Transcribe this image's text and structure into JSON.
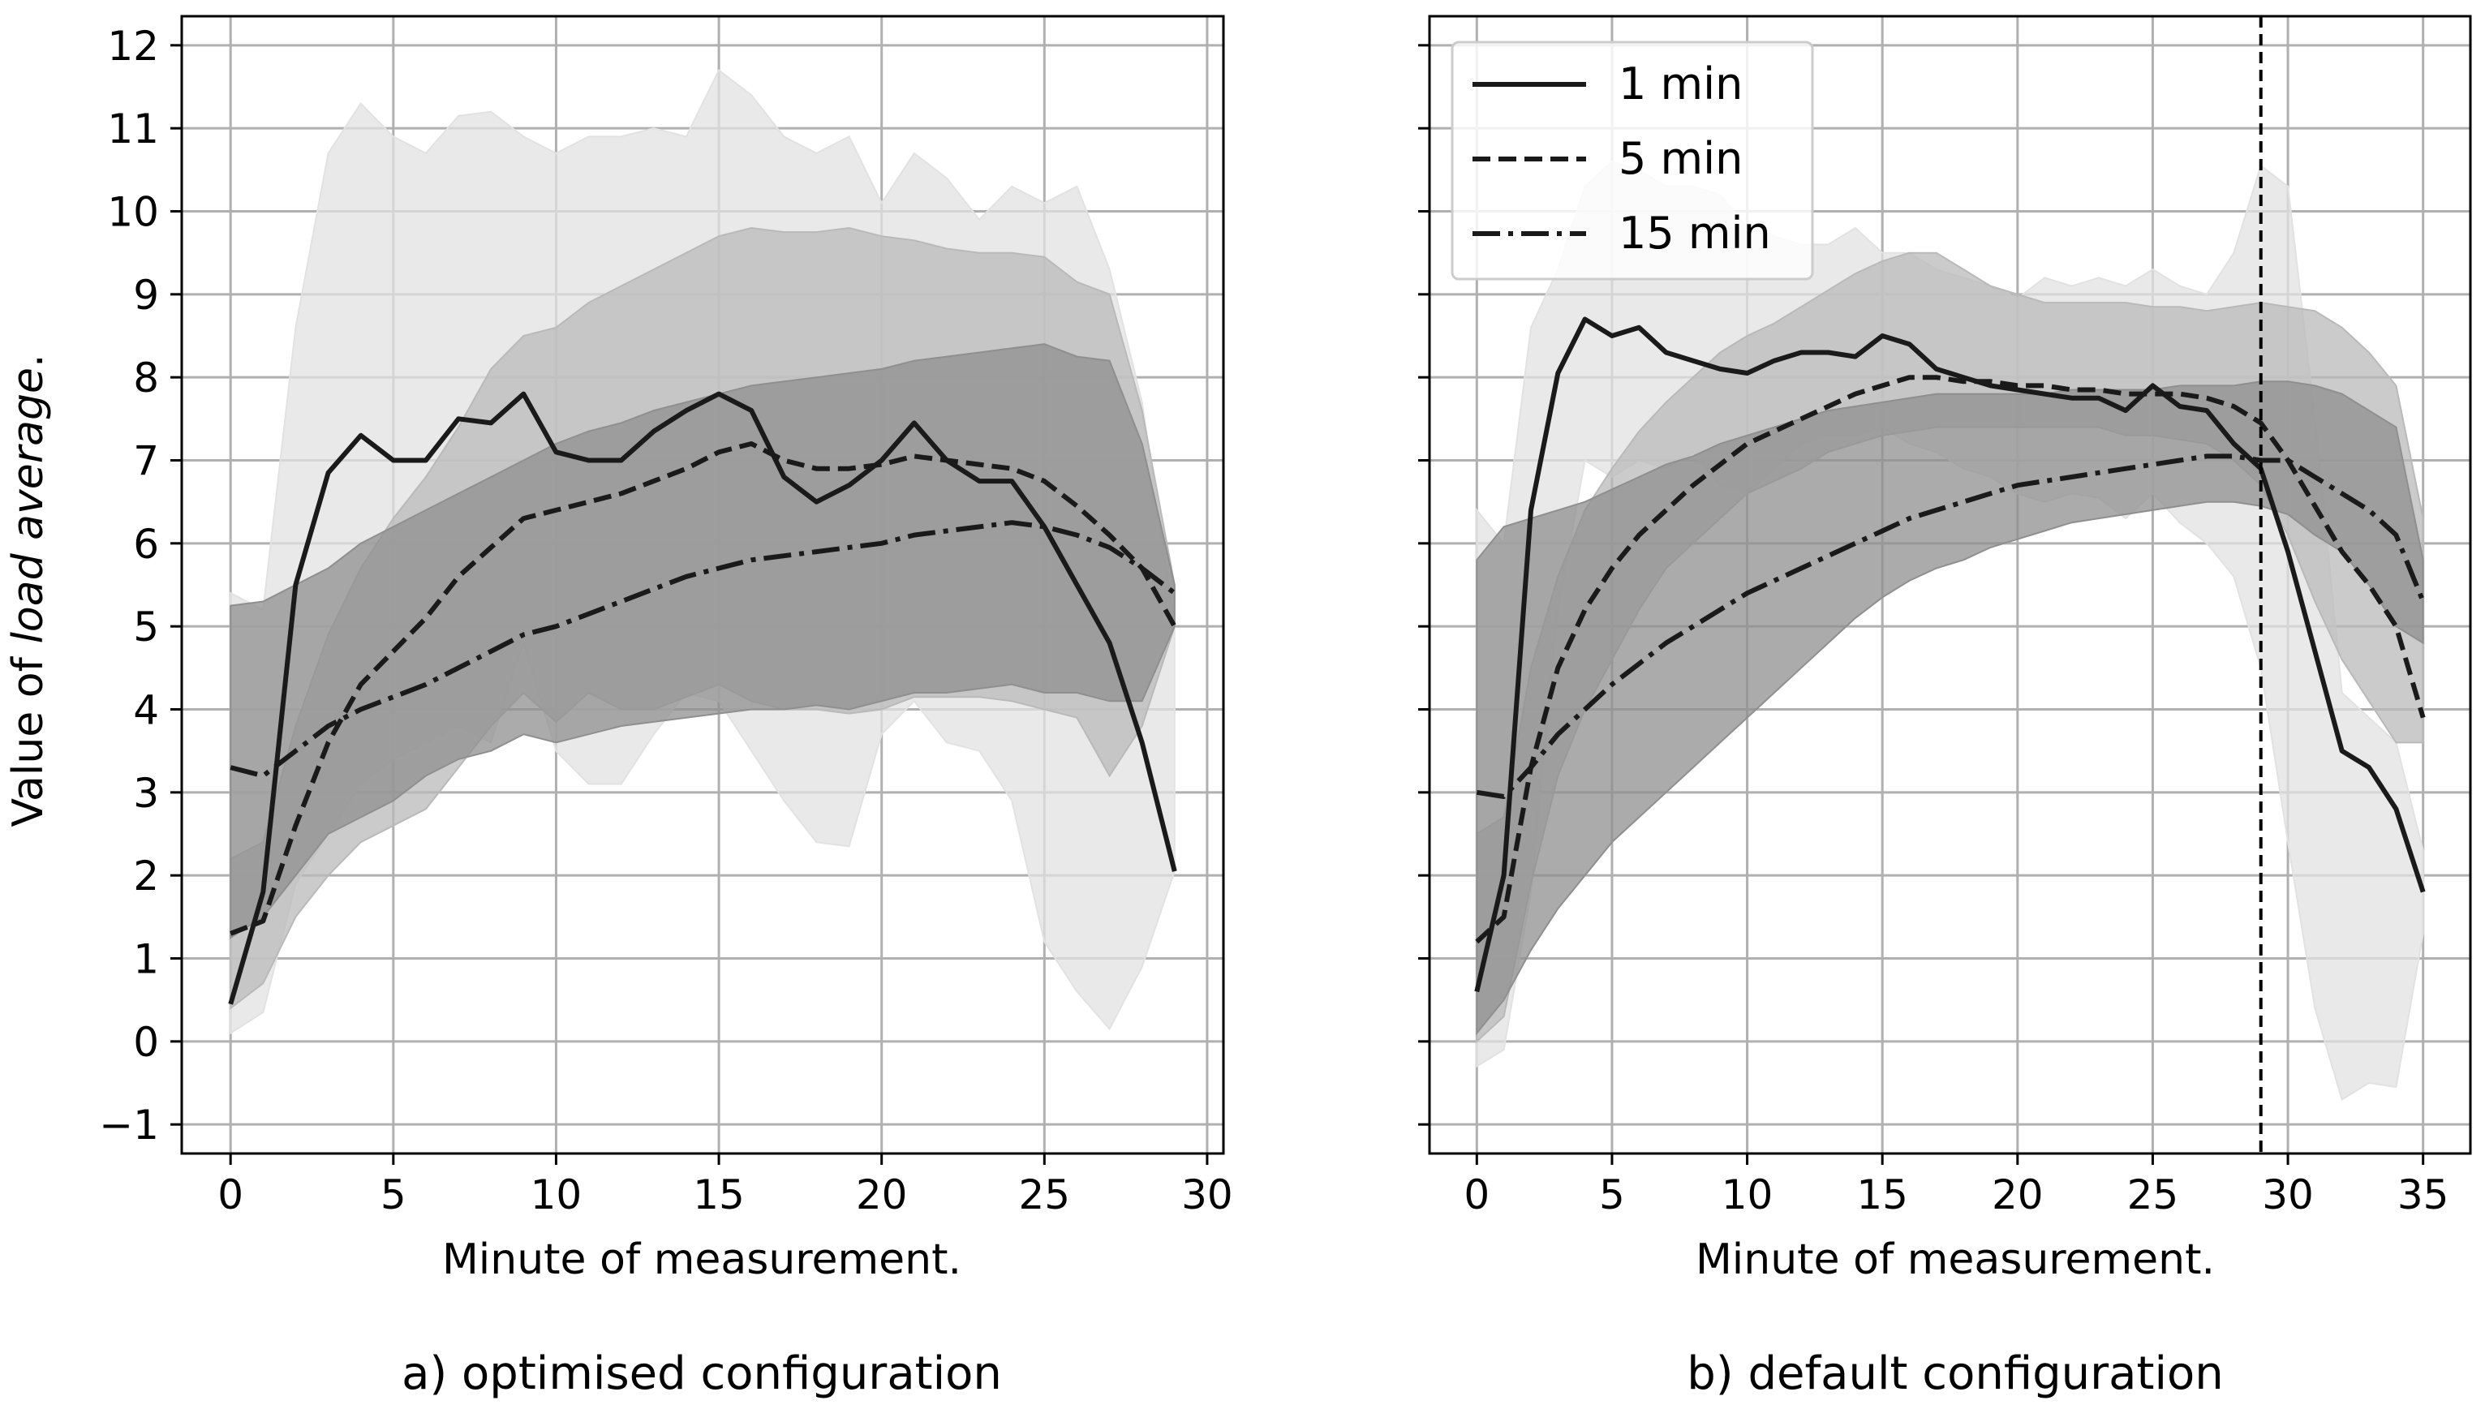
{
  "colors": {
    "band_light": "#e2e2e2",
    "band_mid": "#b9b9b9",
    "band_dark": "#8f8f8f",
    "line": "#1a1a1a",
    "grid": "#b0b0b0"
  },
  "ylabel_prefix": "Value of ",
  "ylabel_italic": "load average",
  "ylabel_suffix": ".",
  "legend": {
    "entries": [
      {
        "label": "1 min",
        "style": "solid"
      },
      {
        "label": "5 min",
        "style": "dashed"
      },
      {
        "label": "15 min",
        "style": "dashdot"
      }
    ]
  },
  "chart_data": [
    {
      "type": "line",
      "panel": "a",
      "caption": "a) optimised configuration",
      "xlabel": "Minute of measurement.",
      "ylabel": "Value of load average.",
      "xlim": [
        -1.5,
        30.5
      ],
      "ylim": [
        -1.35,
        12.35
      ],
      "xticks": [
        0,
        5,
        10,
        15,
        20,
        25,
        30
      ],
      "yticks": [
        -1,
        0,
        1,
        2,
        3,
        4,
        5,
        6,
        7,
        8,
        9,
        10,
        11,
        12
      ],
      "grid": true,
      "vline": null,
      "series": [
        {
          "name": "1 min",
          "style": "solid",
          "x": [
            0,
            1,
            2,
            3,
            4,
            5,
            6,
            7,
            8,
            9,
            10,
            11,
            12,
            13,
            14,
            15,
            16,
            17,
            18,
            19,
            20,
            21,
            22,
            23,
            24,
            25,
            26,
            27,
            28,
            29
          ],
          "values": [
            0.45,
            1.8,
            5.5,
            6.85,
            7.3,
            7.0,
            7.0,
            7.5,
            7.45,
            7.8,
            7.1,
            7.0,
            7.0,
            7.35,
            7.6,
            7.8,
            7.6,
            6.8,
            6.5,
            6.7,
            7.0,
            7.45,
            7.0,
            6.75,
            6.75,
            6.2,
            5.5,
            4.8,
            3.6,
            2.05
          ],
          "band_upper": [
            5.4,
            5.2,
            8.6,
            10.7,
            11.3,
            10.9,
            10.7,
            11.15,
            11.2,
            10.9,
            10.7,
            10.9,
            10.9,
            11.0,
            10.9,
            11.7,
            11.4,
            10.9,
            10.7,
            10.9,
            10.1,
            10.7,
            10.4,
            9.9,
            10.3,
            10.1,
            10.3,
            9.3,
            7.7,
            5.0
          ],
          "band_lower": [
            0.1,
            0.35,
            1.9,
            2.5,
            3.1,
            3.4,
            3.6,
            3.8,
            3.6,
            4.8,
            3.5,
            3.1,
            3.1,
            3.7,
            4.2,
            4.1,
            3.5,
            2.9,
            2.4,
            2.35,
            3.7,
            4.1,
            3.6,
            3.5,
            2.9,
            1.2,
            0.6,
            0.15,
            0.9,
            2.05
          ]
        },
        {
          "name": "5 min",
          "style": "dashed",
          "x": [
            0,
            1,
            2,
            3,
            4,
            5,
            6,
            7,
            8,
            9,
            10,
            11,
            12,
            13,
            14,
            15,
            16,
            17,
            18,
            19,
            20,
            21,
            22,
            23,
            24,
            25,
            26,
            27,
            28,
            29
          ],
          "values": [
            1.3,
            1.45,
            2.6,
            3.6,
            4.3,
            4.7,
            5.1,
            5.6,
            5.95,
            6.3,
            6.4,
            6.5,
            6.6,
            6.75,
            6.9,
            7.1,
            7.2,
            7.0,
            6.9,
            6.9,
            6.95,
            7.05,
            7.0,
            6.95,
            6.9,
            6.75,
            6.45,
            6.1,
            5.7,
            5.0
          ],
          "band_upper": [
            2.2,
            2.4,
            3.8,
            4.9,
            5.7,
            6.3,
            6.8,
            7.4,
            8.1,
            8.5,
            8.6,
            8.9,
            9.1,
            9.3,
            9.5,
            9.7,
            9.8,
            9.75,
            9.75,
            9.8,
            9.7,
            9.65,
            9.55,
            9.5,
            9.5,
            9.45,
            9.15,
            9.0,
            7.6,
            5.5
          ],
          "band_lower": [
            0.4,
            0.7,
            1.5,
            2.0,
            2.4,
            2.6,
            2.8,
            3.3,
            3.8,
            4.2,
            3.85,
            4.2,
            4.0,
            4.0,
            4.15,
            4.3,
            4.1,
            4.0,
            4.0,
            3.95,
            4.0,
            4.15,
            4.15,
            4.15,
            4.1,
            4.0,
            3.9,
            3.2,
            3.8,
            5.0
          ]
        },
        {
          "name": "15 min",
          "style": "dashdot",
          "x": [
            0,
            1,
            2,
            3,
            4,
            5,
            6,
            7,
            8,
            9,
            10,
            11,
            12,
            13,
            14,
            15,
            16,
            17,
            18,
            19,
            20,
            21,
            22,
            23,
            24,
            25,
            26,
            27,
            28,
            29
          ],
          "values": [
            3.3,
            3.2,
            3.5,
            3.8,
            4.0,
            4.15,
            4.3,
            4.5,
            4.7,
            4.9,
            5.0,
            5.15,
            5.3,
            5.45,
            5.6,
            5.7,
            5.8,
            5.85,
            5.9,
            5.95,
            6.0,
            6.1,
            6.15,
            6.2,
            6.25,
            6.2,
            6.1,
            5.95,
            5.7,
            5.4
          ],
          "band_upper": [
            5.25,
            5.3,
            5.5,
            5.7,
            6.0,
            6.2,
            6.4,
            6.6,
            6.8,
            7.0,
            7.2,
            7.35,
            7.45,
            7.6,
            7.7,
            7.8,
            7.9,
            7.95,
            8.0,
            8.05,
            8.1,
            8.2,
            8.25,
            8.3,
            8.35,
            8.4,
            8.25,
            8.2,
            7.2,
            5.5
          ],
          "band_lower": [
            1.25,
            1.5,
            2.0,
            2.5,
            2.7,
            2.9,
            3.2,
            3.4,
            3.5,
            3.7,
            3.6,
            3.7,
            3.8,
            3.85,
            3.9,
            3.95,
            4.0,
            4.0,
            4.05,
            4.0,
            4.1,
            4.2,
            4.2,
            4.25,
            4.3,
            4.2,
            4.2,
            4.1,
            4.1,
            5.0
          ]
        }
      ]
    },
    {
      "type": "line",
      "panel": "b",
      "caption": "b) default configuration",
      "xlabel": "Minute of measurement.",
      "ylabel": "",
      "xlim": [
        -1.75,
        36.75
      ],
      "ylim": [
        -1.35,
        12.35
      ],
      "xticks": [
        0,
        5,
        10,
        15,
        20,
        25,
        30,
        35
      ],
      "yticks": [
        -1,
        0,
        1,
        2,
        3,
        4,
        5,
        6,
        7,
        8,
        9,
        10,
        11,
        12
      ],
      "grid": true,
      "vline": 29,
      "series": [
        {
          "name": "1 min",
          "style": "solid",
          "x": [
            0,
            1,
            2,
            3,
            4,
            5,
            6,
            7,
            8,
            9,
            10,
            11,
            12,
            13,
            14,
            15,
            16,
            17,
            18,
            19,
            20,
            21,
            22,
            23,
            24,
            25,
            26,
            27,
            28,
            29,
            30,
            31,
            32,
            33,
            34,
            35
          ],
          "values": [
            0.6,
            2.0,
            6.4,
            8.05,
            8.7,
            8.5,
            8.6,
            8.3,
            8.2,
            8.1,
            8.05,
            8.2,
            8.3,
            8.3,
            8.25,
            8.5,
            8.4,
            8.1,
            8.0,
            7.9,
            7.85,
            7.8,
            7.75,
            7.75,
            7.6,
            7.9,
            7.65,
            7.6,
            7.2,
            6.9,
            5.9,
            4.7,
            3.5,
            3.3,
            2.8,
            1.8
          ],
          "band_upper": [
            6.4,
            6.0,
            8.6,
            9.3,
            10.3,
            10.6,
            10.5,
            10.3,
            10.3,
            10.2,
            9.8,
            9.7,
            9.6,
            9.6,
            9.8,
            9.5,
            9.5,
            9.3,
            9.2,
            9.1,
            8.95,
            9.2,
            9.1,
            9.2,
            9.1,
            9.3,
            9.1,
            9.0,
            9.5,
            10.55,
            10.3,
            7.5,
            4.2,
            3.9,
            3.6,
            2.3
          ],
          "band_lower": [
            -0.3,
            -0.1,
            1.8,
            5.2,
            7.0,
            6.8,
            7.0,
            6.9,
            7.1,
            6.7,
            6.6,
            6.9,
            7.2,
            7.3,
            7.3,
            7.4,
            7.2,
            7.1,
            6.9,
            6.8,
            6.6,
            6.5,
            6.6,
            6.55,
            6.3,
            6.6,
            6.25,
            6.0,
            5.6,
            4.5,
            2.4,
            0.4,
            -0.7,
            -0.5,
            -0.55,
            1.3
          ]
        },
        {
          "name": "5 min",
          "style": "dashed",
          "x": [
            0,
            1,
            2,
            3,
            4,
            5,
            6,
            7,
            8,
            9,
            10,
            11,
            12,
            13,
            14,
            15,
            16,
            17,
            18,
            19,
            20,
            21,
            22,
            23,
            24,
            25,
            26,
            27,
            28,
            29,
            30,
            31,
            32,
            33,
            34,
            35
          ],
          "values": [
            1.2,
            1.5,
            3.3,
            4.5,
            5.2,
            5.7,
            6.1,
            6.4,
            6.7,
            6.95,
            7.2,
            7.35,
            7.5,
            7.65,
            7.8,
            7.9,
            8.0,
            8.0,
            7.95,
            7.95,
            7.9,
            7.9,
            7.85,
            7.85,
            7.8,
            7.8,
            7.8,
            7.75,
            7.65,
            7.45,
            7.0,
            6.45,
            5.9,
            5.5,
            5.0,
            3.9
          ],
          "band_upper": [
            2.5,
            2.7,
            4.5,
            5.6,
            6.4,
            6.9,
            7.35,
            7.7,
            8.0,
            8.3,
            8.5,
            8.65,
            8.85,
            9.05,
            9.25,
            9.4,
            9.5,
            9.5,
            9.3,
            9.1,
            9.0,
            8.9,
            8.9,
            8.9,
            8.9,
            8.85,
            8.85,
            8.8,
            8.85,
            8.9,
            8.85,
            8.8,
            8.6,
            8.3,
            7.9,
            6.3
          ],
          "band_lower": [
            0.0,
            0.3,
            1.9,
            3.2,
            4.0,
            4.6,
            5.2,
            5.7,
            6.0,
            6.3,
            6.6,
            6.75,
            6.9,
            7.1,
            7.2,
            7.3,
            7.35,
            7.4,
            7.4,
            7.4,
            7.4,
            7.4,
            7.4,
            7.4,
            7.3,
            7.3,
            7.25,
            7.2,
            7.0,
            6.7,
            6.1,
            5.3,
            4.6,
            4.1,
            3.6,
            3.6
          ]
        },
        {
          "name": "15 min",
          "style": "dashdot",
          "x": [
            0,
            1,
            2,
            3,
            4,
            5,
            6,
            7,
            8,
            9,
            10,
            11,
            12,
            13,
            14,
            15,
            16,
            17,
            18,
            19,
            20,
            21,
            22,
            23,
            24,
            25,
            26,
            27,
            28,
            29,
            30,
            31,
            32,
            33,
            34,
            35
          ],
          "values": [
            3.0,
            2.95,
            3.3,
            3.7,
            4.0,
            4.3,
            4.55,
            4.8,
            5.0,
            5.2,
            5.4,
            5.55,
            5.7,
            5.85,
            6.0,
            6.15,
            6.3,
            6.4,
            6.5,
            6.6,
            6.7,
            6.75,
            6.8,
            6.85,
            6.9,
            6.95,
            7.0,
            7.05,
            7.05,
            7.0,
            7.0,
            6.8,
            6.6,
            6.4,
            6.1,
            5.3
          ],
          "band_upper": [
            5.8,
            6.2,
            6.3,
            6.4,
            6.5,
            6.65,
            6.8,
            6.95,
            7.05,
            7.2,
            7.3,
            7.4,
            7.5,
            7.6,
            7.65,
            7.7,
            7.75,
            7.8,
            7.8,
            7.8,
            7.8,
            7.8,
            7.85,
            7.85,
            7.85,
            7.85,
            7.9,
            7.9,
            7.9,
            7.95,
            7.95,
            7.9,
            7.8,
            7.6,
            7.4,
            5.8
          ],
          "band_lower": [
            0.1,
            0.5,
            1.1,
            1.6,
            2.0,
            2.4,
            2.7,
            3.0,
            3.3,
            3.6,
            3.9,
            4.2,
            4.5,
            4.8,
            5.1,
            5.35,
            5.55,
            5.7,
            5.8,
            5.95,
            6.05,
            6.15,
            6.25,
            6.3,
            6.35,
            6.4,
            6.45,
            6.5,
            6.5,
            6.45,
            6.35,
            6.1,
            5.9,
            5.5,
            5.0,
            4.8
          ]
        }
      ]
    }
  ]
}
